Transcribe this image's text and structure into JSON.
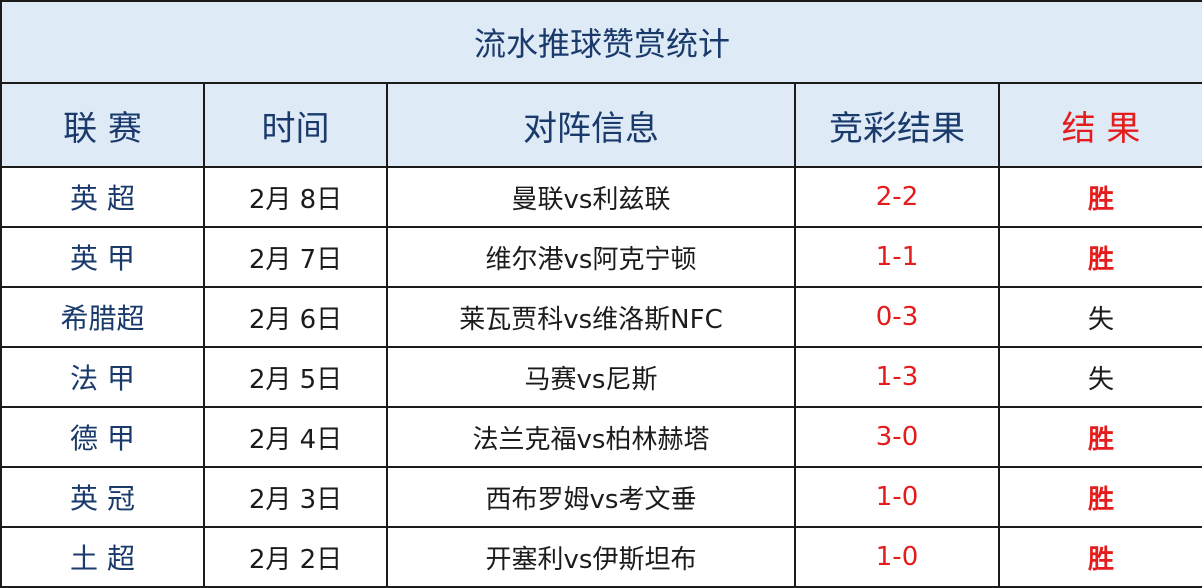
{
  "title": "流水推球赞赏统计",
  "headers": {
    "league": "联 赛",
    "time": "时间",
    "match": "对阵信息",
    "score": "竞彩结果",
    "result": "结   果"
  },
  "rows": [
    {
      "league": "英 超",
      "date": "2月 8日",
      "match": "曼联vs利兹联",
      "score": "2-2",
      "result": "胜",
      "win": true
    },
    {
      "league": "英 甲",
      "date": "2月 7日",
      "match": "维尔港vs阿克宁顿",
      "score": "1-1",
      "result": "胜",
      "win": true
    },
    {
      "league": "希腊超",
      "date": "2月 6日",
      "match": "莱瓦贾科vs维洛斯NFC",
      "score": "0-3",
      "result": "失",
      "win": false
    },
    {
      "league": "法 甲",
      "date": "2月 5日",
      "match": "马赛vs尼斯",
      "score": "1-3",
      "result": "失",
      "win": false
    },
    {
      "league": "德 甲",
      "date": "2月 4日",
      "match": "法兰克福vs柏林赫塔",
      "score": "3-0",
      "result": "胜",
      "win": true
    },
    {
      "league": "英 冠",
      "date": "2月 3日",
      "match": "西布罗姆vs考文垂",
      "score": "1-0",
      "result": "胜",
      "win": true
    },
    {
      "league": "土 超",
      "date": "2月 2日",
      "match": "开塞利vs伊斯坦布",
      "score": "1-0",
      "result": "胜",
      "win": true
    }
  ],
  "colors": {
    "header_bg": "#deeaf6",
    "header_text": "#1a3a6c",
    "accent_red": "#e51c1c",
    "border": "#1b1b1b"
  }
}
